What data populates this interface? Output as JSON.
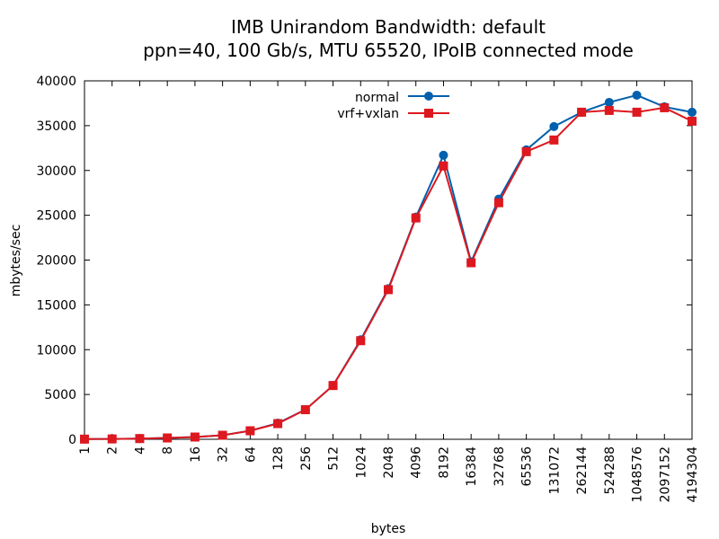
{
  "chart_data": {
    "type": "line",
    "title": "IMB Unirandom Bandwidth: default",
    "subtitle": "ppn=40, 100 Gb/s, MTU 65520, IPoIB connected mode",
    "xlabel": "bytes",
    "ylabel": "mbytes/sec",
    "categories": [
      "1",
      "2",
      "4",
      "8",
      "16",
      "32",
      "64",
      "128",
      "256",
      "512",
      "1024",
      "2048",
      "4096",
      "8192",
      "16384",
      "32768",
      "65536",
      "131072",
      "262144",
      "524288",
      "1048576",
      "2097152",
      "4194304"
    ],
    "ylim": [
      0,
      40000
    ],
    "yticks": [
      "0",
      "5000",
      "10000",
      "15000",
      "20000",
      "25000",
      "30000",
      "35000",
      "40000"
    ],
    "grid": false,
    "legend_position": "top-center",
    "series": [
      {
        "name": "normal",
        "color": "#0060ad",
        "marker": "circle",
        "values": [
          20,
          40,
          80,
          150,
          250,
          450,
          950,
          1800,
          3300,
          6000,
          11100,
          16800,
          24800,
          31700,
          19800,
          26800,
          32300,
          34900,
          36500,
          37600,
          38400,
          37100,
          36500
        ]
      },
      {
        "name": "vrf+vxlan",
        "color": "#dd181f",
        "marker": "square",
        "values": [
          20,
          40,
          80,
          150,
          250,
          450,
          950,
          1750,
          3300,
          6000,
          11000,
          16700,
          24700,
          30500,
          19700,
          26400,
          32100,
          33400,
          36500,
          36700,
          36500,
          37000,
          35500
        ]
      }
    ]
  }
}
